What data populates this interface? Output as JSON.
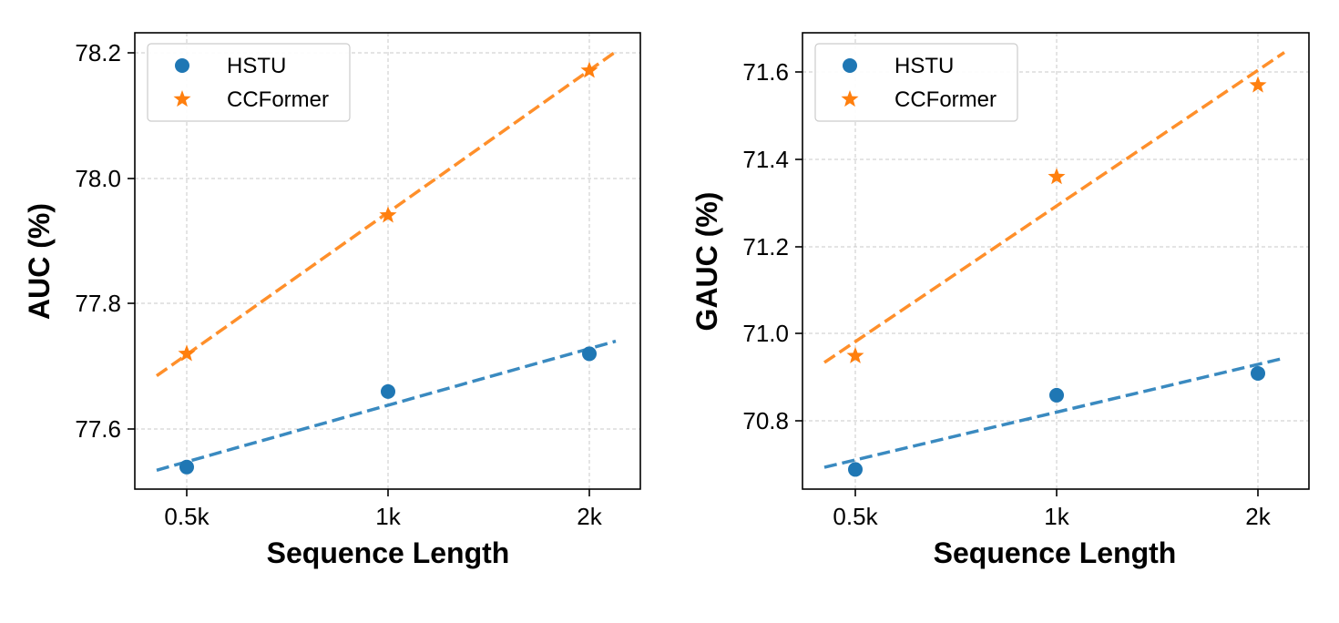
{
  "colors": {
    "hstu": "#1f77b4",
    "ccformer": "#ff7f0e",
    "hstu_fit": "#3a8ac0",
    "ccformer_fit": "#ff8f2a"
  },
  "chart_data": [
    {
      "type": "scatter",
      "xlabel": "Sequence Length",
      "ylabel": "AUC (%)",
      "categories": [
        "0.5k",
        "1k",
        "2k"
      ],
      "ylim": [
        77.505,
        78.23
      ],
      "yticks": [
        "77.6",
        "77.8",
        "78.0",
        "78.2"
      ],
      "grid": true,
      "legend_position": "top-left",
      "series": [
        {
          "name": "HSTU",
          "marker": "circle",
          "values": [
            77.54,
            77.66,
            77.72
          ],
          "trend": {
            "start": 77.535,
            "end": 77.74
          }
        },
        {
          "name": "CCFormer",
          "marker": "star",
          "values": [
            77.72,
            77.94,
            78.17
          ],
          "trend": {
            "start": 77.685,
            "end": 78.2
          }
        }
      ]
    },
    {
      "type": "scatter",
      "xlabel": "Sequence Length",
      "ylabel": "GAUC (%)",
      "categories": [
        "0.5k",
        "1k",
        "2k"
      ],
      "ylim": [
        70.645,
        71.69
      ],
      "yticks": [
        "70.8",
        "71.0",
        "71.2",
        "71.4",
        "71.6"
      ],
      "grid": true,
      "legend_position": "top-left",
      "series": [
        {
          "name": "HSTU",
          "marker": "circle",
          "values": [
            70.69,
            70.86,
            70.91
          ],
          "trend": {
            "start": 70.695,
            "end": 70.945
          }
        },
        {
          "name": "CCFormer",
          "marker": "star",
          "values": [
            70.95,
            71.36,
            71.57
          ],
          "trend": {
            "start": 70.935,
            "end": 71.645
          }
        }
      ]
    }
  ]
}
